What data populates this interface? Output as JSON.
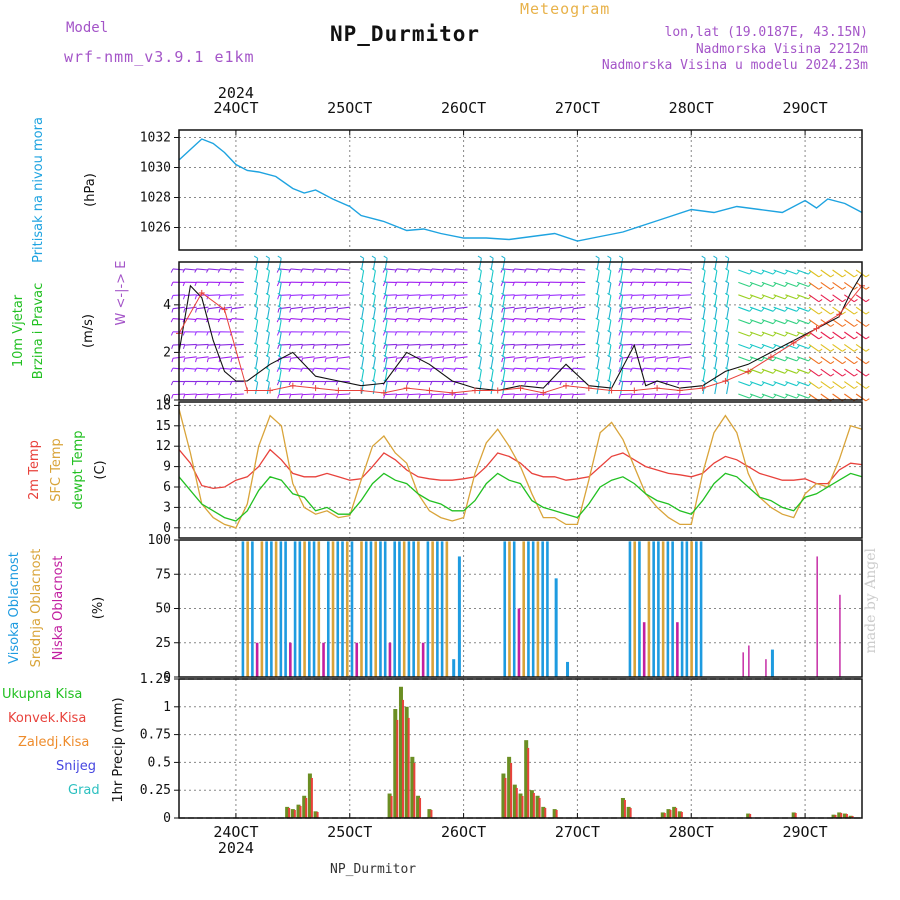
{
  "header": {
    "title": "NP_Durmitor",
    "subtitle": "Meteogram",
    "model_label": "Model",
    "model_name": "wrf-nmm_v3.9.1  e1km",
    "lonlat": "lon,lat (19.0187E, 43.15N)",
    "elevation": "Nadmorska Visina 2212m",
    "elevation_model": "Nadmorska Visina u modelu 2024.23m",
    "footer": "NP_Durmitor",
    "credit": "made by Angel"
  },
  "time_axis": {
    "year": "2024",
    "labels": [
      "24OCT",
      "25OCT",
      "26OCT",
      "27OCT",
      "28OCT",
      "29OCT"
    ],
    "start_day": 23.5,
    "end_day": 29.5
  },
  "colors": {
    "pressure": "#1ea3e0",
    "temp2m": "#e8423c",
    "sfc": "#d9a43a",
    "dewpt": "#22c022",
    "high": "#1e9be0",
    "mid": "#d9a43a",
    "low": "#c21fa0",
    "total": "#22c022",
    "convective": "#e8423c",
    "freezing": "#ee8c2c",
    "snow": "#4646e0",
    "hail": "#2cc0c0",
    "grid": "#888888"
  },
  "chart_data": [
    {
      "type": "line",
      "name": "pressure",
      "ylabel": "Pritisak na nivou mora",
      "unit": "(hPa)",
      "ylim": [
        1024.5,
        1032.5
      ],
      "yticks": [
        1026,
        1028,
        1030,
        1032
      ],
      "x": [
        23.5,
        23.6,
        23.7,
        23.8,
        23.9,
        24.0,
        24.1,
        24.2,
        24.35,
        24.5,
        24.6,
        24.7,
        24.85,
        25.0,
        25.1,
        25.3,
        25.5,
        25.65,
        25.8,
        26.0,
        26.2,
        26.4,
        26.6,
        26.8,
        27.0,
        27.2,
        27.4,
        27.6,
        27.8,
        28.0,
        28.2,
        28.4,
        28.6,
        28.8,
        29.0,
        29.1,
        29.2,
        29.35,
        29.5
      ],
      "values": [
        1030.5,
        1031.2,
        1031.9,
        1031.6,
        1031.0,
        1030.2,
        1029.8,
        1029.7,
        1029.4,
        1028.6,
        1028.3,
        1028.5,
        1027.9,
        1027.4,
        1026.8,
        1026.4,
        1025.8,
        1025.9,
        1025.6,
        1025.3,
        1025.3,
        1025.2,
        1025.4,
        1025.6,
        1025.1,
        1025.4,
        1025.7,
        1026.2,
        1026.7,
        1027.2,
        1027.0,
        1027.4,
        1027.2,
        1027.0,
        1027.8,
        1027.3,
        1027.9,
        1027.6,
        1027.0
      ]
    },
    {
      "type": "line",
      "name": "wind",
      "ylabel": "10m Vjetar Brzina i Pravac",
      "unit": "(m/s)",
      "compass": "W <-|-> E",
      "ylim": [
        0,
        5.8
      ],
      "yticks": [
        0,
        2,
        4
      ],
      "x": [
        23.5,
        23.6,
        23.7,
        23.8,
        23.9,
        24.0,
        24.1,
        24.3,
        24.5,
        24.7,
        24.9,
        25.1,
        25.3,
        25.5,
        25.7,
        25.9,
        26.1,
        26.3,
        26.5,
        26.7,
        26.9,
        27.1,
        27.3,
        27.5,
        27.6,
        27.7,
        27.9,
        28.1,
        28.3,
        28.5,
        28.7,
        28.9,
        29.1,
        29.3,
        29.4,
        29.5
      ],
      "values": [
        2.0,
        4.8,
        4.3,
        2.5,
        1.2,
        0.8,
        0.8,
        1.5,
        2.0,
        1.0,
        0.8,
        0.6,
        0.7,
        2.0,
        1.5,
        0.8,
        0.5,
        0.4,
        0.6,
        0.5,
        1.5,
        0.6,
        0.5,
        2.3,
        0.6,
        0.8,
        0.5,
        0.6,
        1.2,
        1.5,
        2.0,
        2.5,
        3.0,
        3.5,
        4.5,
        5.3
      ],
      "gust_x": [
        23.5,
        23.7,
        23.9,
        24.1,
        24.3,
        24.5,
        24.7,
        24.9,
        25.1,
        25.3,
        25.5,
        25.7,
        25.9,
        26.1,
        26.3,
        26.5,
        26.7,
        26.9,
        27.1,
        27.3,
        27.5,
        27.7,
        27.9,
        28.1,
        28.3,
        28.5,
        28.7,
        28.9,
        29.1,
        29.3,
        29.5
      ],
      "gust_values": [
        2.8,
        4.5,
        3.8,
        0.4,
        0.4,
        0.6,
        0.5,
        0.4,
        0.4,
        0.3,
        0.5,
        0.4,
        0.3,
        0.4,
        0.4,
        0.5,
        0.3,
        0.6,
        0.5,
        0.4,
        0.4,
        0.5,
        0.4,
        0.5,
        0.8,
        1.2,
        1.8,
        2.4,
        3.0,
        3.6,
        4.8
      ]
    },
    {
      "type": "line",
      "name": "temperature",
      "ylabel_lines": [
        "2m Temp",
        "SFC Temp",
        "dewpt Temp"
      ],
      "unit": "(C)",
      "ylim": [
        -1.5,
        18.5
      ],
      "yticks": [
        0,
        3,
        6,
        9,
        12,
        15,
        18
      ],
      "x": [
        23.5,
        23.6,
        23.7,
        23.8,
        23.9,
        24.0,
        24.1,
        24.2,
        24.3,
        24.4,
        24.5,
        24.6,
        24.7,
        24.8,
        24.9,
        25.0,
        25.1,
        25.2,
        25.3,
        25.4,
        25.5,
        25.6,
        25.7,
        25.8,
        25.9,
        26.0,
        26.1,
        26.2,
        26.3,
        26.4,
        26.5,
        26.6,
        26.7,
        26.8,
        26.9,
        27.0,
        27.1,
        27.2,
        27.3,
        27.4,
        27.5,
        27.6,
        27.7,
        27.8,
        27.9,
        28.0,
        28.1,
        28.2,
        28.3,
        28.4,
        28.5,
        28.6,
        28.7,
        28.8,
        28.9,
        29.0,
        29.1,
        29.2,
        29.3,
        29.4,
        29.5
      ],
      "series": [
        {
          "name": "2m Temp",
          "key": "temp2m",
          "values": [
            11.5,
            9.5,
            6.2,
            5.8,
            6.0,
            7.0,
            7.5,
            9.0,
            11.5,
            10.0,
            8.0,
            7.5,
            7.5,
            8.0,
            7.5,
            7.0,
            7.2,
            9.0,
            11.0,
            10.0,
            8.5,
            7.5,
            7.2,
            7.0,
            7.0,
            7.2,
            7.5,
            9.0,
            11.0,
            10.5,
            9.5,
            8.0,
            7.5,
            7.5,
            7.0,
            7.2,
            7.5,
            9.0,
            10.5,
            11.0,
            10.0,
            9.0,
            8.5,
            8.0,
            7.8,
            7.5,
            8.0,
            9.5,
            10.5,
            10.0,
            9.0,
            8.0,
            7.5,
            7.0,
            7.0,
            7.2,
            6.5,
            6.5,
            8.5,
            9.5,
            9.3
          ]
        },
        {
          "name": "SFC Temp",
          "key": "sfc",
          "values": [
            17.5,
            11.0,
            3.5,
            1.5,
            0.5,
            0.0,
            3.5,
            12.0,
            16.5,
            15.0,
            6.5,
            3.0,
            2.0,
            2.5,
            1.5,
            1.8,
            7.0,
            12.0,
            13.5,
            11.0,
            9.5,
            5.0,
            2.5,
            1.5,
            1.0,
            1.5,
            8.0,
            12.5,
            14.5,
            12.0,
            9.0,
            5.0,
            1.5,
            1.5,
            0.5,
            0.5,
            7.0,
            14.0,
            15.5,
            13.0,
            9.0,
            5.0,
            3.0,
            1.5,
            0.5,
            0.5,
            8.0,
            14.0,
            16.5,
            14.0,
            8.0,
            4.5,
            3.0,
            2.0,
            1.5,
            5.0,
            6.5,
            6.0,
            10.0,
            15.0,
            14.5
          ]
        },
        {
          "name": "dewpt Temp",
          "key": "dewpt",
          "values": [
            7.5,
            5.5,
            3.5,
            2.5,
            1.5,
            1.0,
            2.5,
            5.5,
            7.5,
            7.0,
            5.0,
            4.5,
            2.5,
            3.0,
            2.0,
            2.0,
            4.0,
            6.5,
            8.0,
            7.0,
            6.5,
            5.0,
            4.0,
            3.5,
            2.5,
            2.5,
            4.0,
            6.5,
            8.0,
            7.0,
            6.5,
            4.0,
            3.0,
            2.5,
            2.0,
            1.5,
            3.5,
            6.0,
            7.0,
            7.5,
            6.5,
            5.0,
            4.0,
            3.5,
            2.5,
            2.0,
            4.0,
            6.5,
            8.0,
            7.5,
            6.0,
            4.5,
            4.0,
            3.0,
            2.5,
            4.5,
            5.0,
            6.0,
            7.0,
            8.0,
            7.5
          ]
        }
      ]
    },
    {
      "type": "bar",
      "name": "clouds",
      "ylabel_lines": [
        "Visoka Oblacnost",
        "Srednja Oblacnost",
        "Niska Oblacnost"
      ],
      "unit": "(%)",
      "ylim": [
        0,
        100
      ],
      "yticks": [
        0,
        25,
        50,
        75,
        100
      ],
      "blocks": [
        {
          "x0": 24.05,
          "x1": 25.9,
          "high": 99,
          "mid": 99,
          "low": 25
        },
        {
          "x0": 26.35,
          "x1": 26.75,
          "high": 99,
          "mid": 99,
          "low": 50
        },
        {
          "x0": 27.45,
          "x1": 28.1,
          "high": 99,
          "mid": 99,
          "low": 40
        }
      ],
      "singles": [
        {
          "x": 25.95,
          "key": "high",
          "value": 88
        },
        {
          "x": 25.9,
          "key": "high",
          "value": 13
        },
        {
          "x": 26.8,
          "key": "high",
          "value": 72
        },
        {
          "x": 26.9,
          "key": "high",
          "value": 11
        },
        {
          "x": 28.7,
          "key": "high",
          "value": 20
        },
        {
          "x": 28.65,
          "key": "low",
          "value": 13
        },
        {
          "x": 28.45,
          "key": "low",
          "value": 18
        },
        {
          "x": 28.5,
          "key": "low",
          "value": 23
        },
        {
          "x": 29.1,
          "key": "low",
          "value": 88
        },
        {
          "x": 29.3,
          "key": "low",
          "value": 60
        }
      ]
    },
    {
      "type": "bar",
      "name": "precipitation",
      "ylabel": "1hr Precip (mm)",
      "legend": [
        "Ukupna Kisa",
        "Konvek.Kisa",
        "Zaledj.Kisa",
        "Snijeg",
        "Grad"
      ],
      "ylim": [
        0,
        1.25
      ],
      "yticks": [
        0,
        0.25,
        0.5,
        0.75,
        1,
        1.25
      ],
      "x": [
        24.45,
        24.5,
        24.55,
        24.6,
        24.65,
        24.7,
        25.35,
        25.4,
        25.45,
        25.5,
        25.55,
        25.6,
        25.7,
        26.35,
        26.4,
        26.45,
        26.5,
        26.55,
        26.6,
        26.65,
        26.7,
        26.8,
        27.4,
        27.45,
        27.75,
        27.8,
        27.85,
        27.9,
        28.5,
        28.9,
        29.25,
        29.3,
        29.35,
        29.4
      ],
      "values": [
        0.1,
        0.08,
        0.12,
        0.2,
        0.4,
        0.06,
        0.22,
        0.98,
        1.18,
        1.0,
        0.55,
        0.2,
        0.08,
        0.4,
        0.55,
        0.3,
        0.22,
        0.7,
        0.25,
        0.2,
        0.1,
        0.08,
        0.18,
        0.1,
        0.05,
        0.08,
        0.1,
        0.06,
        0.04,
        0.05,
        0.03,
        0.05,
        0.04,
        0.02
      ]
    }
  ]
}
